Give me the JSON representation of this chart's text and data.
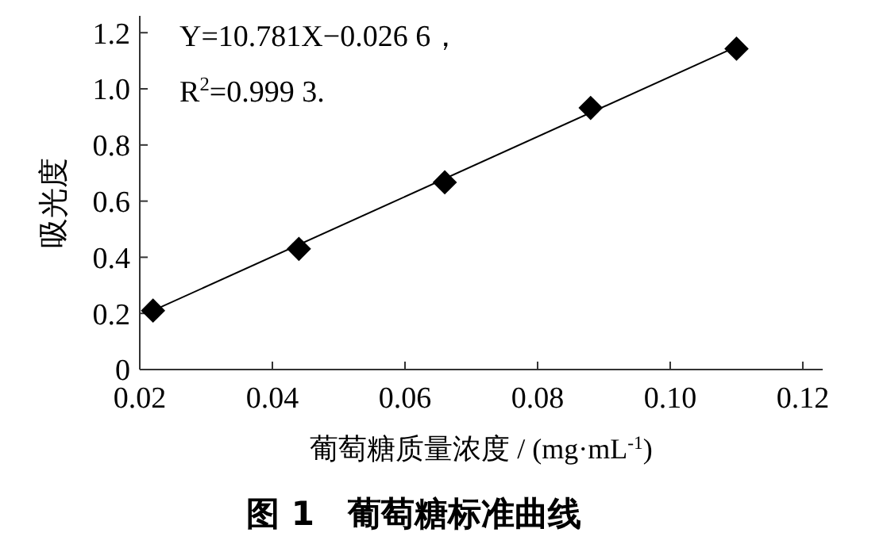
{
  "chart_data": {
    "type": "scatter",
    "title": "图 1　葡萄糖标准曲线",
    "xlabel": "葡萄糖质量浓度 / (mg·mL$^{-1}$)",
    "ylabel": "吸光度",
    "annotations": [
      "Y=10.781X−0.026 6，",
      "R$^{2}$=0.999 3."
    ],
    "series": [
      {
        "color": "#000000",
        "marker": "diamond",
        "x": [
          0.022,
          0.044,
          0.066,
          0.088,
          0.11
        ],
        "values": [
          0.21,
          0.43,
          0.667,
          0.932,
          1.143
        ]
      },
      {
        "type": "line",
        "color": "#000000",
        "marker": "none",
        "x": [
          0.022,
          0.11
        ],
        "values": [
          0.21,
          1.15
        ]
      }
    ],
    "xlim": [
      0.02,
      0.123
    ],
    "xticks": [
      0.02,
      0.04,
      0.06,
      0.08,
      {
        "value": 0.1,
        "label": "0.10"
      },
      0.12
    ],
    "ylim": [
      0,
      1.26
    ],
    "yticks": [
      0,
      0.2,
      0.4,
      0.6,
      0.8,
      {
        "value": 1,
        "label": "1.0"
      },
      1.2
    ],
    "grid": false
  }
}
